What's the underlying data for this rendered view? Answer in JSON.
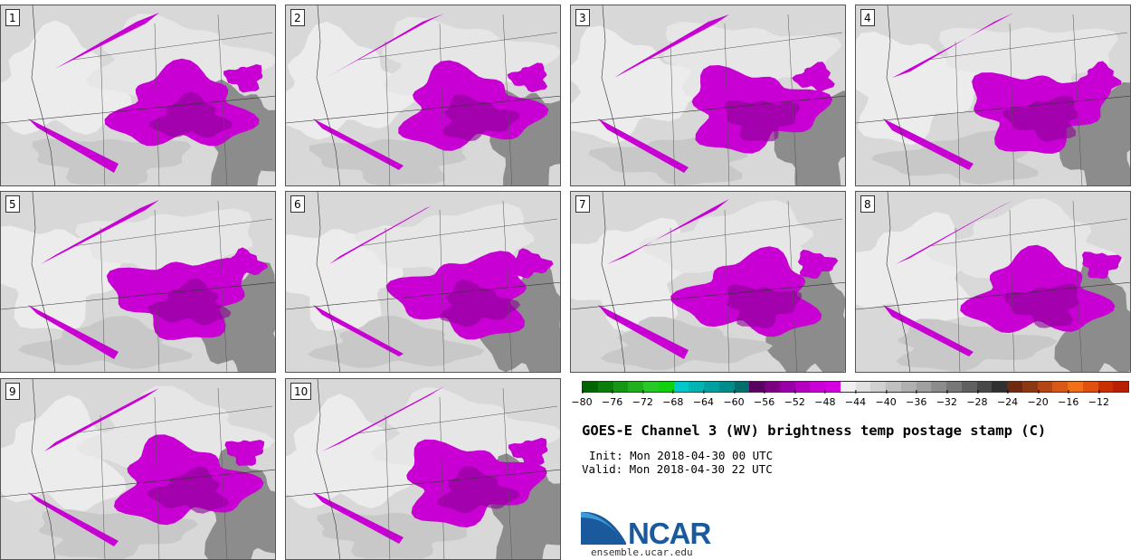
{
  "panels": [
    {
      "label": "1"
    },
    {
      "label": "2"
    },
    {
      "label": "3"
    },
    {
      "label": "4"
    },
    {
      "label": "5"
    },
    {
      "label": "6"
    },
    {
      "label": "7"
    },
    {
      "label": "8"
    },
    {
      "label": "9"
    },
    {
      "label": "10"
    }
  ],
  "colorbar": {
    "colors": [
      "#006400",
      "#0a7d0a",
      "#159615",
      "#1faf1f",
      "#28c828",
      "#10d010",
      "#00c8c8",
      "#00b4b4",
      "#00a0a0",
      "#008c8c",
      "#006e6e",
      "#5a0060",
      "#7a0080",
      "#9a00a8",
      "#b400c0",
      "#c800d4",
      "#d400e0",
      "#f0f0f0",
      "#e0e0e0",
      "#d0d0d0",
      "#c0c0c0",
      "#b0b0b0",
      "#a0a0a0",
      "#8c8c8c",
      "#787878",
      "#606060",
      "#484848",
      "#303030",
      "#6e2a10",
      "#8c3812",
      "#b44614",
      "#d85818",
      "#f07018",
      "#e05010",
      "#c83000",
      "#b82000"
    ],
    "ticks": [
      "−80",
      "−76",
      "−72",
      "−68",
      "−64",
      "−60",
      "−56",
      "−52",
      "−48",
      "−44",
      "−40",
      "−36",
      "−32",
      "−28",
      "−24",
      "−20",
      "−16",
      "−12"
    ]
  },
  "title": "GOES-E Channel 3 (WV) brightness temp postage stamp (C)",
  "init_text": "Init: Mon 2018-04-30 00 UTC",
  "valid_text": "Valid: Mon 2018-04-30 22 UTC",
  "logo": {
    "word": "NCAR",
    "blue": "#1a5a9c",
    "light_blue": "#3d9ad6"
  },
  "site": "ensemble.ucar.edu",
  "colors": {
    "magenta": "#c800d4",
    "dark_magenta": "#8a0094",
    "light_gray": "#ececec",
    "mid_gray": "#c8c8c8",
    "dark_gray": "#8c8c8c"
  }
}
